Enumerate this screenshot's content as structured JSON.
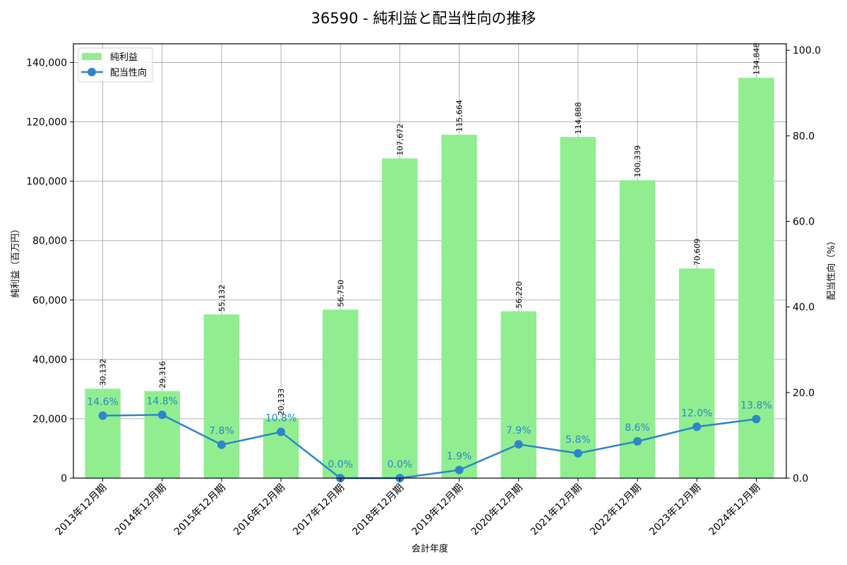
{
  "chart_data": {
    "type": "bar+line",
    "title": "36590 - 純利益と配当性向の推移",
    "xlabel": "会計年度",
    "ylabel_left": "純利益（百万円）",
    "ylabel_right": "配当性向（%）",
    "ylim_left": [
      0,
      146300
    ],
    "ylim_right": [
      0,
      101.5
    ],
    "yticks_left": [
      0,
      20000,
      40000,
      60000,
      80000,
      100000,
      120000,
      140000
    ],
    "yticks_left_labels": [
      "0",
      "20,000",
      "40,000",
      "60,000",
      "80,000",
      "100,000",
      "120,000",
      "140,000"
    ],
    "yticks_right": [
      0,
      20,
      40,
      60,
      80,
      100
    ],
    "yticks_right_labels": [
      "0.0",
      "20.0",
      "40.0",
      "60.0",
      "80.0",
      "100.0"
    ],
    "grid": true,
    "legend_position": "upper left",
    "categories": [
      "2013年12月期",
      "2014年12月期",
      "2015年12月期",
      "2016年12月期",
      "2017年12月期",
      "2018年12月期",
      "2019年12月期",
      "2020年12月期",
      "2021年12月期",
      "2022年12月期",
      "2023年12月期",
      "2024年12月期"
    ],
    "series": [
      {
        "name": "純利益",
        "type": "bar",
        "axis": "left",
        "color": "#90ee90",
        "values": [
          30132,
          29316,
          55132,
          20133,
          56750,
          107672,
          115664,
          56220,
          114888,
          100339,
          70609,
          134848
        ],
        "labels": [
          "30,132",
          "29,316",
          "55,132",
          "20,133",
          "56,750",
          "107,672",
          "115,664",
          "56,220",
          "114,888",
          "100,339",
          "70,609",
          "134,848"
        ]
      },
      {
        "name": "配当性向",
        "type": "line",
        "axis": "right",
        "color": "#2e86c8",
        "values": [
          14.6,
          14.8,
          7.8,
          10.8,
          0.0,
          0.0,
          1.9,
          7.9,
          5.8,
          8.6,
          12.0,
          13.8
        ],
        "labels": [
          "14.6%",
          "14.8%",
          "7.8%",
          "10.8%",
          "0.0%",
          "0.0%",
          "1.9%",
          "7.9%",
          "5.8%",
          "8.6%",
          "12.0%",
          "13.8%"
        ]
      }
    ]
  }
}
